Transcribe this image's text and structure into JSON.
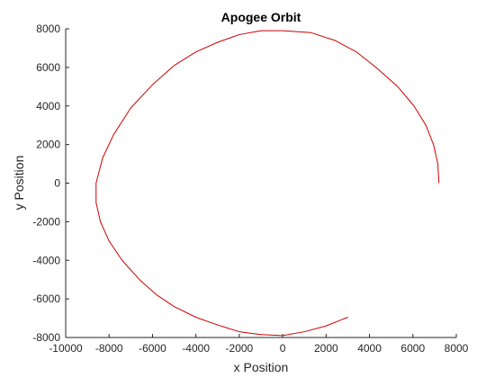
{
  "chart_data": {
    "type": "line",
    "title": "Apogee Orbit",
    "xlabel": "x Position",
    "ylabel": "y Position",
    "xlim": [
      -10000,
      8000
    ],
    "ylim": [
      -8000,
      8000
    ],
    "xticks": [
      -10000,
      -8000,
      -6000,
      -4000,
      -2000,
      0,
      2000,
      4000,
      6000,
      8000
    ],
    "yticks": [
      -8000,
      -6000,
      -4000,
      -2000,
      0,
      2000,
      4000,
      6000,
      8000
    ],
    "grid": false,
    "series": [
      {
        "color": "#cc0000",
        "points": [
          [
            7200,
            0
          ],
          [
            7150,
            1000
          ],
          [
            6950,
            2000
          ],
          [
            6600,
            3000
          ],
          [
            6050,
            4000
          ],
          [
            5300,
            5000
          ],
          [
            4300,
            6000
          ],
          [
            3400,
            6800
          ],
          [
            2400,
            7400
          ],
          [
            1300,
            7800
          ],
          [
            0,
            7900
          ],
          [
            -1000,
            7900
          ],
          [
            -2000,
            7700
          ],
          [
            -3000,
            7300
          ],
          [
            -4000,
            6800
          ],
          [
            -5000,
            6100
          ],
          [
            -6000,
            5100
          ],
          [
            -7000,
            3900
          ],
          [
            -7800,
            2500
          ],
          [
            -8300,
            1300
          ],
          [
            -8600,
            0
          ],
          [
            -8600,
            -1000
          ],
          [
            -8400,
            -2000
          ],
          [
            -8000,
            -3000
          ],
          [
            -7400,
            -4000
          ],
          [
            -6600,
            -5000
          ],
          [
            -5800,
            -5800
          ],
          [
            -5000,
            -6400
          ],
          [
            -4000,
            -6950
          ],
          [
            -3000,
            -7350
          ],
          [
            -2000,
            -7700
          ],
          [
            -1000,
            -7850
          ],
          [
            0,
            -7900
          ],
          [
            1000,
            -7700
          ],
          [
            2000,
            -7400
          ],
          [
            3000,
            -6950
          ]
        ]
      }
    ]
  }
}
